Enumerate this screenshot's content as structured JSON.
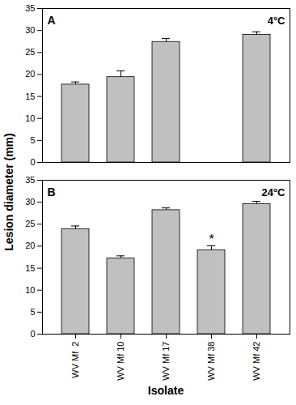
{
  "chart_data": [
    {
      "type": "bar",
      "title": "A",
      "subtitle": "4°C",
      "categories": [
        "WV Mf  2",
        "WV Mf 10",
        "WV Mf 17",
        "WV Mf 38",
        "WV Mf 42"
      ],
      "values": [
        17.7,
        19.4,
        27.4,
        null,
        29.0
      ],
      "errors": [
        0.6,
        1.4,
        0.8,
        null,
        0.7
      ],
      "color": "#c0c0c0",
      "ylabel": "Lesion diameter (mm)",
      "ylim": [
        0,
        35
      ],
      "yticks": [
        0,
        5,
        10,
        15,
        20,
        25,
        30,
        35
      ],
      "tick_labels": "y"
    },
    {
      "type": "bar",
      "title": "B",
      "subtitle": "24°C",
      "categories": [
        "WV Mf  2",
        "WV Mf 10",
        "WV Mf 17",
        "WV Mf 38",
        "WV Mf 42"
      ],
      "values": [
        23.9,
        17.2,
        28.2,
        19.1,
        29.6
      ],
      "errors": [
        0.7,
        0.6,
        0.5,
        1.0,
        0.6
      ],
      "color": "#c0c0c0",
      "xlabel": "Isolate",
      "ylim": [
        0,
        35
      ],
      "yticks": [
        0,
        5,
        10,
        15,
        20,
        25,
        30,
        35
      ],
      "annotations": [
        {
          "category": "WV Mf 38",
          "text": "*"
        }
      ]
    }
  ]
}
